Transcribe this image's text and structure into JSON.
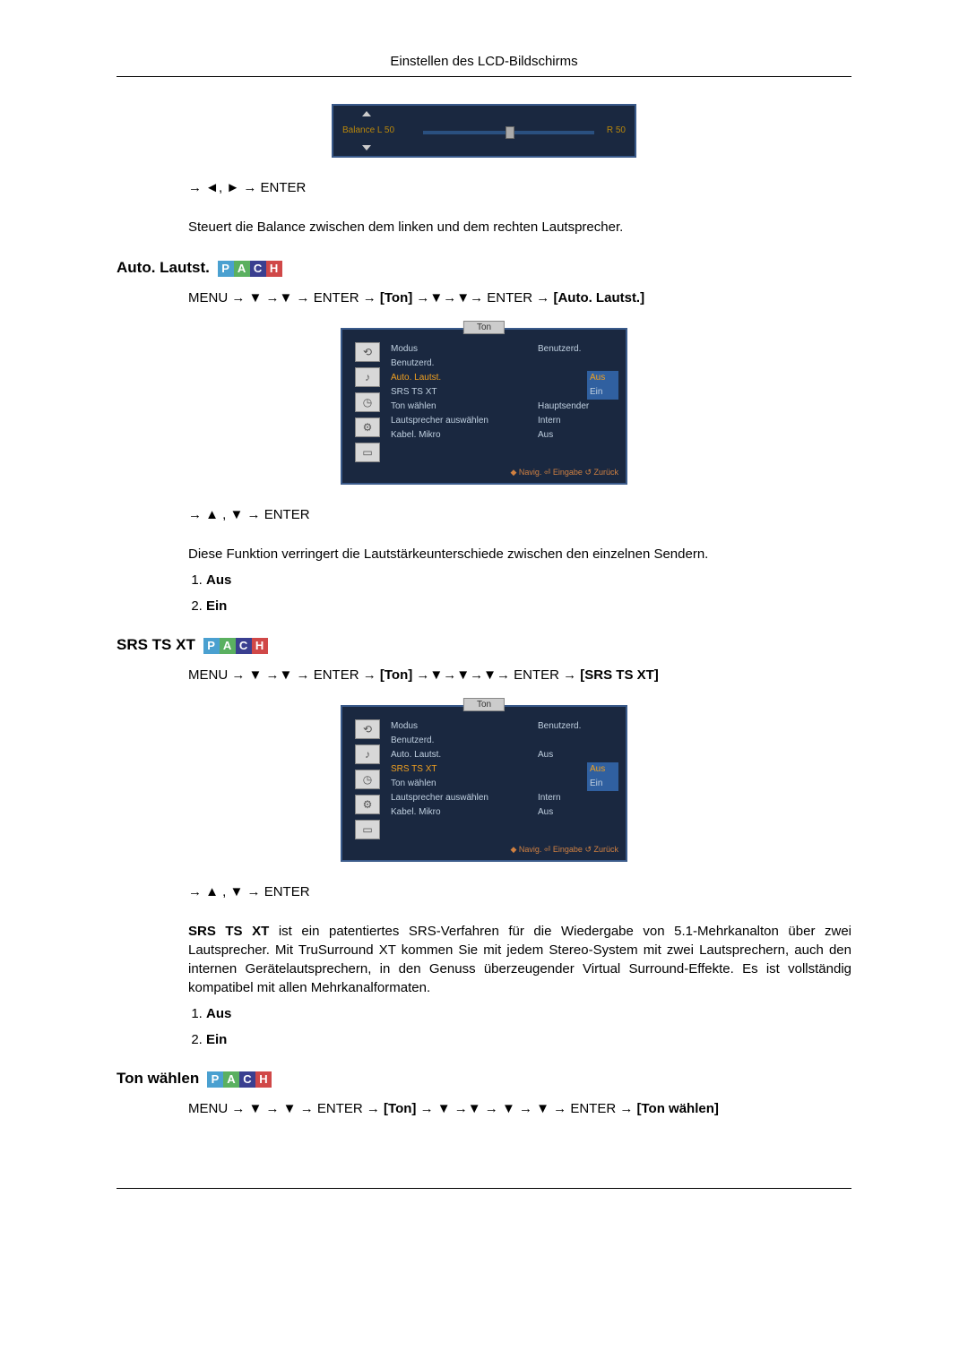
{
  "page": {
    "header": "Einstellen des LCD-Bildschirms"
  },
  "balance": {
    "label_l": "Balance  L  50",
    "label_r": "R  50",
    "nav_line": "→ ◄, ► → ENTER",
    "desc": "Steuert die Balance zwischen dem linken und dem rechten Lautsprecher."
  },
  "auto_lautst": {
    "title": "Auto. Lautst.",
    "pach": [
      "P",
      "A",
      "C",
      "H"
    ],
    "path_prefix": "MENU → ▼ →▼ → ENTER → ",
    "path_bracket1": "[Ton]",
    "path_mid": " →▼→▼→ ENTER → ",
    "path_bracket2": "[Auto. Lautst.]",
    "menu": {
      "tab": "Ton",
      "rows": [
        {
          "k": "Modus",
          "v": "Benutzerd.",
          "hi": false
        },
        {
          "k": "Benutzerd.",
          "v": "",
          "hi": false
        },
        {
          "k": "Auto. Lautst.",
          "v": "Aus",
          "hi": true,
          "box": true
        },
        {
          "k": "SRS TS XT",
          "v": "Ein",
          "hi": false,
          "box": true
        },
        {
          "k": "Ton wählen",
          "v": "Hauptsender",
          "hi": false
        },
        {
          "k": "Lautsprecher auswählen",
          "v": "Intern",
          "hi": false
        },
        {
          "k": "Kabel. Mikro",
          "v": "Aus",
          "hi": false
        }
      ],
      "footer": "◆ Navig.     ⏎ Eingabe   ↺ Zurück"
    },
    "nav_line": "→ ▲ , ▼ → ENTER",
    "desc": "Diese Funktion verringert die Lautstärkeunterschiede zwischen den einzelnen Sendern.",
    "options": [
      "Aus",
      "Ein"
    ]
  },
  "srs": {
    "title": "SRS TS XT",
    "pach": [
      "P",
      "A",
      "C",
      "H"
    ],
    "path_prefix": "MENU → ▼ →▼ → ENTER → ",
    "path_bracket1": "[Ton]",
    "path_mid": " →▼→▼→▼→ ENTER → ",
    "path_bracket2": "[SRS TS XT]",
    "menu": {
      "tab": "Ton",
      "rows": [
        {
          "k": "Modus",
          "v": "Benutzerd.",
          "hi": false
        },
        {
          "k": "Benutzerd.",
          "v": "",
          "hi": false
        },
        {
          "k": "Auto. Lautst.",
          "v": "Aus",
          "hi": false
        },
        {
          "k": "SRS TS XT",
          "v": "Aus",
          "hi": true,
          "box": true
        },
        {
          "k": "Ton wählen",
          "v": "Ein",
          "hi": false,
          "box": true
        },
        {
          "k": "Lautsprecher auswählen",
          "v": "Intern",
          "hi": false
        },
        {
          "k": "Kabel. Mikro",
          "v": "Aus",
          "hi": false
        }
      ],
      "footer": "◆ Navig.     ⏎ Eingabe   ↺ Zurück"
    },
    "nav_line": "→ ▲ , ▼ → ENTER",
    "desc_lead": "SRS TS XT",
    "desc": " ist ein patentiertes SRS-Verfahren für die Wiedergabe von 5.1-Mehrkanalton über zwei Lautsprecher. Mit TruSurround XT kommen Sie mit jedem Stereo-System mit zwei Lautsprechern, auch den internen Gerätelautsprechern, in den Genuss überzeugender Virtual Surround-Effekte. Es ist vollständig kompatibel mit allen Mehrkanalformaten.",
    "options": [
      "Aus",
      "Ein"
    ]
  },
  "ton_waehlen": {
    "title": "Ton wählen",
    "pach": [
      "P",
      "A",
      "C",
      "H"
    ],
    "path_prefix": "MENU → ▼ → ▼ → ENTER → ",
    "path_bracket1": "[Ton]",
    "path_mid": " → ▼ →▼ → ▼ → ▼ → ENTER → ",
    "path_bracket2": "[Ton wählen]"
  },
  "colors": {
    "menu_bg": "#1a2840",
    "menu_border": "#3a5a8a",
    "highlight": "#f0a020",
    "sel_box": "#3060a0",
    "footer_text": "#d08040",
    "pach_p": "#4aa0d0",
    "pach_a": "#5ab060",
    "pach_c": "#3a3f90",
    "pach_h": "#d04848"
  }
}
